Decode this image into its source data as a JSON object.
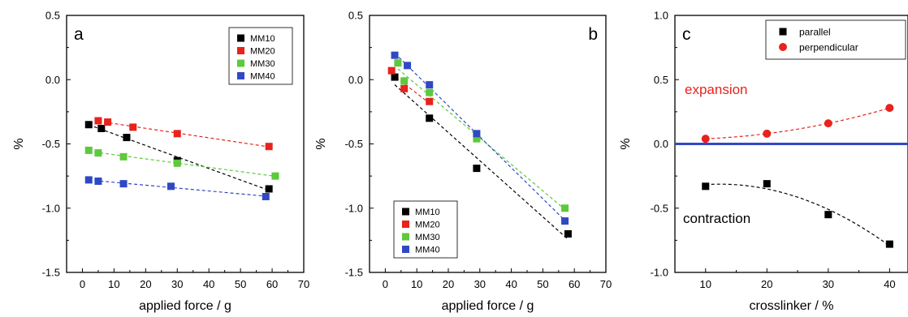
{
  "chart_data": [
    {
      "type": "scatter",
      "panel": "a",
      "xlabel": "applied force / g",
      "ylabel": "%",
      "xlim": [
        -5,
        70
      ],
      "ylim": [
        -1.5,
        0.5
      ],
      "xticks": [
        0,
        10,
        20,
        30,
        40,
        50,
        60,
        70
      ],
      "yticks": [
        0.5,
        0.0,
        -0.5,
        -1.0,
        -1.5
      ],
      "legend_position": "top-right",
      "trend_lines": "dashed linear fit per series",
      "series": [
        {
          "name": "MM10",
          "color": "#000000",
          "x": [
            2,
            6,
            14,
            30,
            59
          ],
          "y": [
            -0.35,
            -0.38,
            -0.45,
            -0.63,
            -0.85
          ]
        },
        {
          "name": "MM20",
          "color": "#e8221c",
          "x": [
            5,
            8,
            16,
            30,
            59
          ],
          "y": [
            -0.32,
            -0.33,
            -0.37,
            -0.42,
            -0.52
          ]
        },
        {
          "name": "MM30",
          "color": "#5dc93c",
          "x": [
            2,
            5,
            13,
            30,
            61
          ],
          "y": [
            -0.55,
            -0.57,
            -0.6,
            -0.65,
            -0.75
          ]
        },
        {
          "name": "MM40",
          "color": "#2f49c5",
          "x": [
            2,
            5,
            13,
            28,
            58
          ],
          "y": [
            -0.78,
            -0.79,
            -0.81,
            -0.83,
            -0.91
          ]
        }
      ]
    },
    {
      "type": "scatter",
      "panel": "b",
      "xlabel": "applied force / g",
      "ylabel": "%",
      "xlim": [
        -5,
        70
      ],
      "ylim": [
        -1.5,
        0.5
      ],
      "xticks": [
        0,
        10,
        20,
        30,
        40,
        50,
        60,
        70
      ],
      "yticks": [
        0.5,
        0.0,
        -0.5,
        -1.0,
        -1.5
      ],
      "legend_position": "bottom-left",
      "trend_lines": "dashed linear fit per series",
      "series": [
        {
          "name": "MM10",
          "color": "#000000",
          "x": [
            3,
            14,
            29,
            58
          ],
          "y": [
            0.02,
            -0.3,
            -0.69,
            -1.2
          ]
        },
        {
          "name": "MM20",
          "color": "#e8221c",
          "x": [
            2,
            6,
            14
          ],
          "y": [
            0.07,
            -0.07,
            -0.17
          ]
        },
        {
          "name": "MM30",
          "color": "#5dc93c",
          "x": [
            4,
            6,
            14,
            29,
            57
          ],
          "y": [
            0.13,
            -0.01,
            -0.1,
            -0.46,
            -1.0
          ]
        },
        {
          "name": "MM40",
          "color": "#2f49c5",
          "x": [
            3,
            7,
            14,
            29,
            57
          ],
          "y": [
            0.19,
            0.11,
            -0.04,
            -0.42,
            -1.1
          ]
        }
      ]
    },
    {
      "type": "scatter",
      "panel": "c",
      "xlabel": "crosslinker / %",
      "ylabel": "%",
      "xlim": [
        5,
        43
      ],
      "ylim": [
        -1.0,
        1.0
      ],
      "xticks": [
        10,
        20,
        30,
        40
      ],
      "yticks": [
        1.0,
        0.5,
        0.0,
        -0.5,
        -1.0
      ],
      "legend_position": "top-right",
      "reference_line": {
        "y": 0,
        "color": "#2f49c5"
      },
      "annotations": [
        {
          "text": "expansion",
          "color": "#e8221c"
        },
        {
          "text": "contraction",
          "color": "#000000"
        }
      ],
      "series": [
        {
          "name": "parallel",
          "color": "#000000",
          "marker": "square",
          "x": [
            10,
            20,
            30,
            40
          ],
          "y": [
            -0.33,
            -0.31,
            -0.55,
            -0.78
          ]
        },
        {
          "name": "perpendicular",
          "color": "#e8221c",
          "marker": "circle",
          "x": [
            10,
            20,
            30,
            40
          ],
          "y": [
            0.04,
            0.08,
            0.16,
            0.28
          ]
        }
      ]
    }
  ]
}
